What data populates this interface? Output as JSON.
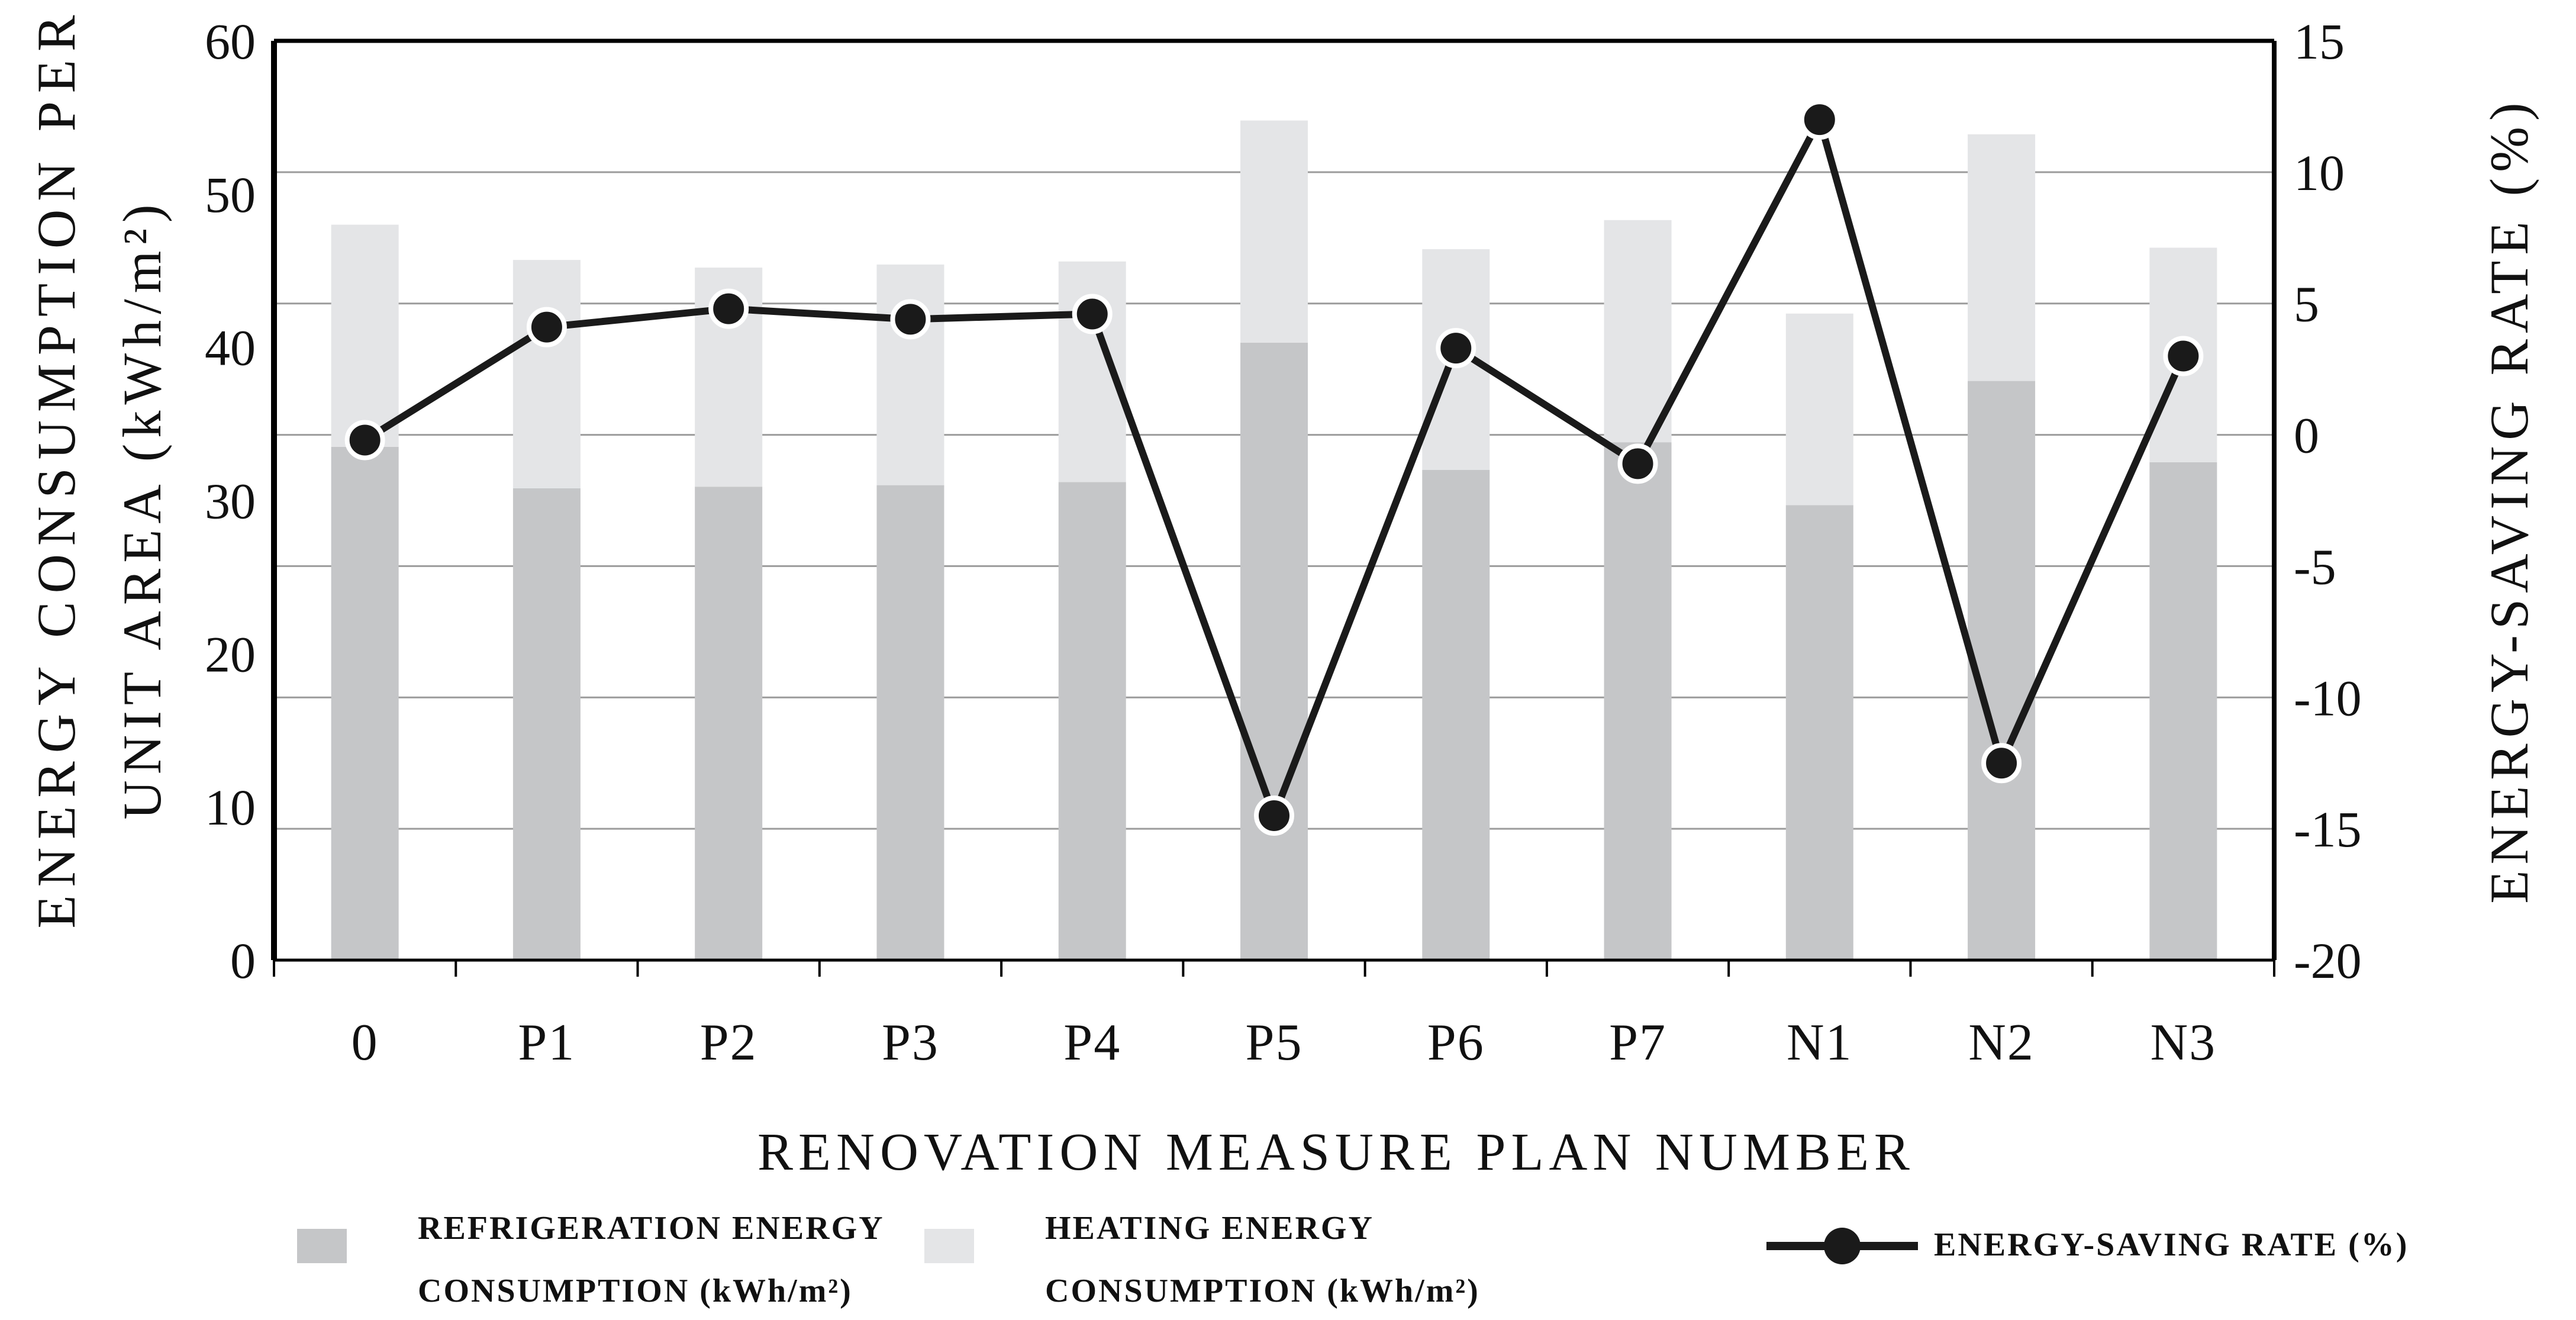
{
  "chart_data": {
    "type": "combo-bar-line",
    "title": "",
    "categories": [
      "0",
      "P1",
      "P2",
      "P3",
      "P4",
      "P5",
      "P6",
      "P7",
      "N1",
      "N2",
      "N3"
    ],
    "series": [
      {
        "name": "REFRIGERATION ENERGY CONSUMPTION (kWh/m²)",
        "type": "bar",
        "stacked": true,
        "axis": "left",
        "color": "#c5c6c8",
        "values": [
          33.5,
          30.8,
          30.9,
          31.0,
          31.2,
          40.3,
          32.0,
          33.8,
          29.7,
          37.8,
          32.5
        ]
      },
      {
        "name": "HEATING ENERGY CONSUMPTION (kWh/m²)",
        "type": "bar",
        "stacked": true,
        "axis": "left",
        "color": "#e4e5e7",
        "values": [
          14.5,
          14.9,
          14.3,
          14.4,
          14.4,
          14.5,
          14.4,
          14.5,
          12.5,
          16.1,
          14.0
        ]
      },
      {
        "name": "ENERGY-SAVING RATE (%)",
        "type": "line",
        "axis": "right",
        "color": "#1a1a1a",
        "values": [
          -0.2,
          4.1,
          4.8,
          4.4,
          4.6,
          -14.5,
          3.3,
          -1.1,
          12.0,
          -12.5,
          3.0
        ]
      }
    ],
    "stacked_totals": [
      48.0,
      45.7,
      45.2,
      45.4,
      45.6,
      54.8,
      46.4,
      48.3,
      42.2,
      53.9,
      46.5
    ],
    "left_axis": {
      "title_line1": "ENERGY CONSUMPTION PER",
      "title_line2": "UNIT AREA (kWh/m²)",
      "min": 0,
      "max": 60,
      "ticks": [
        60,
        50,
        40,
        30,
        20,
        10,
        0
      ]
    },
    "right_axis": {
      "title": "ENERGY-SAVING RATE (%)",
      "min": -20,
      "max": 15,
      "ticks": [
        15,
        10,
        5,
        0,
        -5,
        -10,
        -15,
        -20
      ]
    },
    "x_axis": {
      "title": "RENOVATION MEASURE PLAN NUMBER"
    },
    "grid": {
      "shown": true,
      "follows": "right-axis-5-unit-steps",
      "color": "#9c9c9c"
    },
    "legend": {
      "position": "bottom",
      "items": [
        {
          "label_line1": "REFRIGERATION ENERGY",
          "label_line2": "CONSUMPTION (kWh/m²)",
          "swatch_color": "#c5c6c8",
          "marker": "square"
        },
        {
          "label_line1": "HEATING ENERGY",
          "label_line2": "CONSUMPTION (kWh/m²)",
          "swatch_color": "#e4e5e7",
          "marker": "square"
        },
        {
          "label_line1": "ENERGY-SAVING RATE (%)",
          "label_line2": "",
          "swatch_color": "#1a1a1a",
          "marker": "line-dot"
        }
      ]
    },
    "colors": {
      "background": "#ffffff",
      "frame": "#000000",
      "gridline": "#9c9c9c",
      "line_series": "#1a1a1a",
      "bar_refrigeration": "#c5c6c8",
      "bar_heating": "#e4e5e7"
    }
  }
}
